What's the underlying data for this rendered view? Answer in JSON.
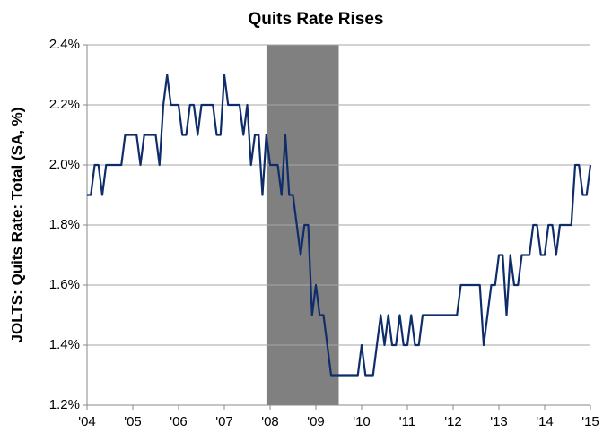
{
  "chart_data": {
    "type": "line",
    "title": "Quits Rate Rises",
    "ylabel": "JOLTS: Quits Rate: Total (SA, %)",
    "xlim": [
      2004,
      2015
    ],
    "ylim": [
      1.2,
      2.4
    ],
    "xticks": [
      {
        "value": 2004,
        "label": "'04"
      },
      {
        "value": 2005,
        "label": "'05"
      },
      {
        "value": 2006,
        "label": "'06"
      },
      {
        "value": 2007,
        "label": "'07"
      },
      {
        "value": 2008,
        "label": "'08"
      },
      {
        "value": 2009,
        "label": "'09"
      },
      {
        "value": 2010,
        "label": "'10"
      },
      {
        "value": 2011,
        "label": "'11"
      },
      {
        "value": 2012,
        "label": "'12"
      },
      {
        "value": 2013,
        "label": "'13"
      },
      {
        "value": 2014,
        "label": "'14"
      },
      {
        "value": 2015,
        "label": "'15"
      }
    ],
    "yticks": [
      {
        "value": 1.2,
        "label": "1.2%"
      },
      {
        "value": 1.4,
        "label": "1.4%"
      },
      {
        "value": 1.6,
        "label": "1.6%"
      },
      {
        "value": 1.8,
        "label": "1.8%"
      },
      {
        "value": 2.0,
        "label": "2.0%"
      },
      {
        "value": 2.2,
        "label": "2.2%"
      },
      {
        "value": 2.4,
        "label": "2.4%"
      }
    ],
    "grid": true,
    "recession": [
      2007.92,
      2009.5
    ],
    "recession_color": "#808080",
    "series": [
      {
        "color": "#0f2d6b",
        "x": [
          2004,
          2004.083,
          2004.167,
          2004.25,
          2004.333,
          2004.417,
          2004.5,
          2004.583,
          2004.667,
          2004.75,
          2004.833,
          2004.917,
          2005,
          2005.083,
          2005.167,
          2005.25,
          2005.333,
          2005.417,
          2005.5,
          2005.583,
          2005.667,
          2005.75,
          2005.833,
          2005.917,
          2006,
          2006.083,
          2006.167,
          2006.25,
          2006.333,
          2006.417,
          2006.5,
          2006.583,
          2006.667,
          2006.75,
          2006.833,
          2006.917,
          2007,
          2007.083,
          2007.167,
          2007.25,
          2007.333,
          2007.417,
          2007.5,
          2007.583,
          2007.667,
          2007.75,
          2007.833,
          2007.917,
          2008,
          2008.083,
          2008.167,
          2008.25,
          2008.333,
          2008.417,
          2008.5,
          2008.583,
          2008.667,
          2008.75,
          2008.833,
          2008.917,
          2009,
          2009.083,
          2009.167,
          2009.25,
          2009.333,
          2009.417,
          2009.5,
          2009.583,
          2009.667,
          2009.75,
          2009.833,
          2009.917,
          2010,
          2010.083,
          2010.167,
          2010.25,
          2010.333,
          2010.417,
          2010.5,
          2010.583,
          2010.667,
          2010.75,
          2010.833,
          2010.917,
          2011,
          2011.083,
          2011.167,
          2011.25,
          2011.333,
          2011.417,
          2011.5,
          2011.583,
          2011.667,
          2011.75,
          2011.833,
          2011.917,
          2012,
          2012.083,
          2012.167,
          2012.25,
          2012.333,
          2012.417,
          2012.5,
          2012.583,
          2012.667,
          2012.75,
          2012.833,
          2012.917,
          2013,
          2013.083,
          2013.167,
          2013.25,
          2013.333,
          2013.417,
          2013.5,
          2013.583,
          2013.667,
          2013.75,
          2013.833,
          2013.917,
          2014,
          2014.083,
          2014.167,
          2014.25,
          2014.333,
          2014.417,
          2014.5,
          2014.583,
          2014.667,
          2014.75,
          2014.833,
          2014.917,
          2015
        ],
        "values": [
          1.9,
          1.9,
          2.0,
          2.0,
          1.9,
          2.0,
          2.0,
          2.0,
          2.0,
          2.0,
          2.1,
          2.1,
          2.1,
          2.1,
          2.0,
          2.1,
          2.1,
          2.1,
          2.1,
          2.0,
          2.2,
          2.3,
          2.2,
          2.2,
          2.2,
          2.1,
          2.1,
          2.2,
          2.2,
          2.1,
          2.2,
          2.2,
          2.2,
          2.2,
          2.1,
          2.1,
          2.3,
          2.2,
          2.2,
          2.2,
          2.2,
          2.1,
          2.2,
          2.0,
          2.1,
          2.1,
          1.9,
          2.1,
          2.0,
          2.0,
          2.0,
          1.9,
          2.1,
          1.9,
          1.9,
          1.8,
          1.7,
          1.8,
          1.8,
          1.5,
          1.6,
          1.5,
          1.5,
          1.4,
          1.3,
          1.3,
          1.3,
          1.3,
          1.3,
          1.3,
          1.3,
          1.3,
          1.4,
          1.3,
          1.3,
          1.3,
          1.4,
          1.5,
          1.4,
          1.5,
          1.4,
          1.4,
          1.5,
          1.4,
          1.4,
          1.5,
          1.4,
          1.4,
          1.5,
          1.5,
          1.5,
          1.5,
          1.5,
          1.5,
          1.5,
          1.5,
          1.5,
          1.5,
          1.6,
          1.6,
          1.6,
          1.6,
          1.6,
          1.6,
          1.4,
          1.5,
          1.6,
          1.6,
          1.7,
          1.7,
          1.5,
          1.7,
          1.6,
          1.6,
          1.7,
          1.7,
          1.7,
          1.8,
          1.8,
          1.7,
          1.7,
          1.8,
          1.8,
          1.7,
          1.8,
          1.8,
          1.8,
          1.8,
          2.0,
          2.0,
          1.9,
          1.9,
          2.0
        ]
      }
    ]
  }
}
